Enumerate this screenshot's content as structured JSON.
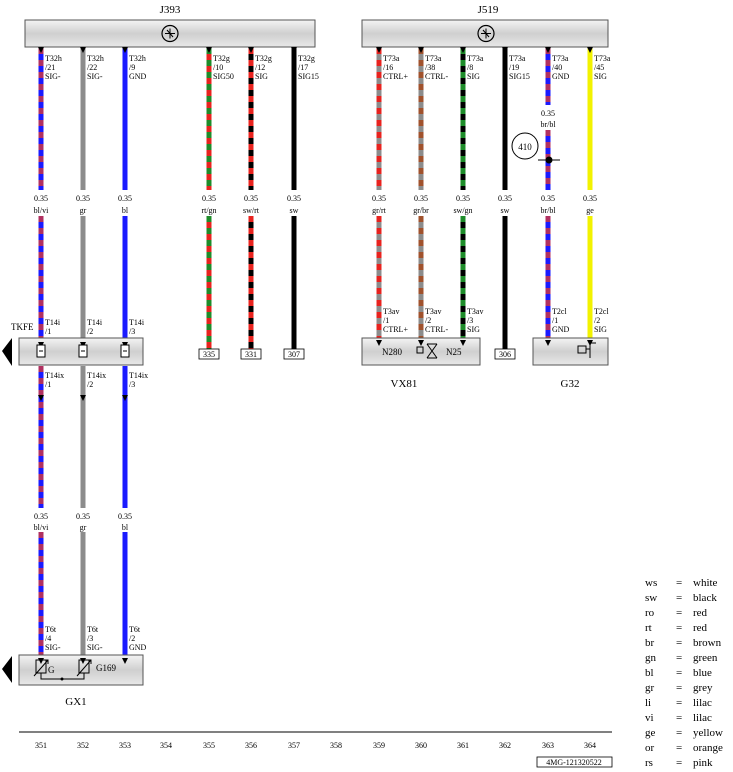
{
  "components": {
    "j393": {
      "label": "J393"
    },
    "j519": {
      "label": "J519"
    },
    "vx81": {
      "label": "VX81",
      "sub": [
        "N280",
        "N25"
      ]
    },
    "g32": {
      "label": "G32"
    },
    "gx1": {
      "label": "GX1",
      "sub": [
        "G",
        "G169"
      ]
    },
    "tkfe": {
      "label": "TKFE"
    }
  },
  "pin_labels": {
    "351": [
      "T32h",
      "/21",
      "SIG-"
    ],
    "352": [
      "T32h",
      "/22",
      "SIG-"
    ],
    "353": [
      "T32h",
      "/9",
      "GND"
    ],
    "355": [
      "T32g",
      "/10",
      "SIG50"
    ],
    "356": [
      "T32g",
      "/12",
      "SIG"
    ],
    "357": [
      "T32g",
      "/17",
      "SIG15"
    ],
    "359": [
      "T73a",
      "/16",
      "CTRL+"
    ],
    "360": [
      "T73a",
      "/38",
      "CTRL-"
    ],
    "361": [
      "T73a",
      "/8",
      "SIG"
    ],
    "362": [
      "T73a",
      "/19",
      "SIG15"
    ],
    "363": [
      "T73a",
      "/40",
      "GND"
    ],
    "364": [
      "T73a",
      "/45",
      "SIG"
    ]
  },
  "wire_labels_upper": {
    "351": [
      "0.35",
      "bl/vi"
    ],
    "352": [
      "0.35",
      "gr"
    ],
    "353": [
      "0.35",
      "bl"
    ],
    "355": [
      "0.35",
      "rt/gn"
    ],
    "356": [
      "0.35",
      "sw/rt"
    ],
    "357": [
      "0.35",
      "sw"
    ],
    "359": [
      "0.35",
      "gr/rt"
    ],
    "360": [
      "0.35",
      "gr/br"
    ],
    "361": [
      "0.35",
      "sw/gn"
    ],
    "362": [
      "0.35",
      "sw"
    ],
    "363": [
      "0.35",
      "br/bl"
    ],
    "364": [
      "0.35",
      "ge"
    ]
  },
  "wire_labels_mid": {
    "363": [
      "0.35",
      "br/bl"
    ]
  },
  "wire_labels_lower": {
    "351": [
      "0.35",
      "bl/vi"
    ],
    "352": [
      "0.35",
      "gr"
    ],
    "353": [
      "0.35",
      "bl"
    ]
  },
  "connector_t14i": {
    "351": [
      "T14i",
      "/1"
    ],
    "352": [
      "T14i",
      "/2"
    ],
    "353": [
      "T14i",
      "/3"
    ]
  },
  "connector_t14ix": {
    "351": [
      "T14ix",
      "/1"
    ],
    "352": [
      "T14ix",
      "/2"
    ],
    "353": [
      "T14ix",
      "/3"
    ]
  },
  "connector_t6t": {
    "351": [
      "T6t",
      "/4",
      "SIG-"
    ],
    "352": [
      "T6t",
      "/3",
      "SIG-"
    ],
    "353": [
      "T6t",
      "/2",
      "GND"
    ]
  },
  "connector_t3av": {
    "359": [
      "T3av",
      "/1",
      "CTRL+"
    ],
    "360": [
      "T3av",
      "/2",
      "CTRL-"
    ],
    "361": [
      "T3av",
      "/3",
      "SIG"
    ]
  },
  "connector_t2cl": {
    "363": [
      "T2cl",
      "/1",
      "GND"
    ],
    "364": [
      "T2cl",
      "/2",
      "SIG"
    ]
  },
  "references": {
    "355": "335",
    "356": "331",
    "357": "307",
    "362": "306"
  },
  "ground_point": "410",
  "column_numbers": [
    "351",
    "352",
    "353",
    "354",
    "355",
    "356",
    "357",
    "358",
    "359",
    "360",
    "361",
    "362",
    "363",
    "364"
  ],
  "doc_code": "4MG-121320522",
  "legend": [
    {
      "code": "ws",
      "eq": "=",
      "name": "white"
    },
    {
      "code": "sw",
      "eq": "=",
      "name": "black"
    },
    {
      "code": "ro",
      "eq": "=",
      "name": "red"
    },
    {
      "code": "rt",
      "eq": "=",
      "name": "red"
    },
    {
      "code": "br",
      "eq": "=",
      "name": "brown"
    },
    {
      "code": "gn",
      "eq": "=",
      "name": "green"
    },
    {
      "code": "bl",
      "eq": "=",
      "name": "blue"
    },
    {
      "code": "gr",
      "eq": "=",
      "name": "grey"
    },
    {
      "code": "li",
      "eq": "=",
      "name": "lilac"
    },
    {
      "code": "vi",
      "eq": "=",
      "name": "lilac"
    },
    {
      "code": "ge",
      "eq": "=",
      "name": "yellow"
    },
    {
      "code": "or",
      "eq": "=",
      "name": "orange"
    },
    {
      "code": "rs",
      "eq": "=",
      "name": "pink"
    }
  ],
  "wire_colors": {
    "blue": "#1a1aff",
    "violet": "#b03060",
    "grey": "#8c8c8c",
    "red": "#e8231f",
    "green": "#1e8c2a",
    "black": "#000000",
    "brown": "#a0522d",
    "yellow": "#f2f200",
    "box_fill": "#d9d9d9"
  }
}
